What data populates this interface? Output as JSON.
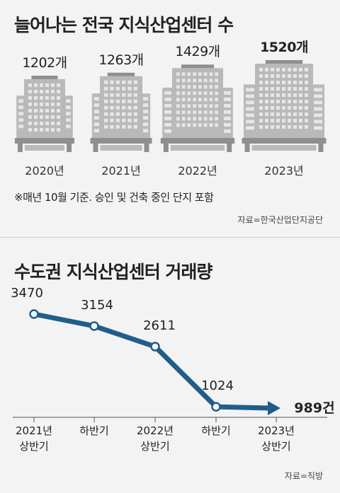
{
  "top_chart": {
    "title": "늘어나는 전국 지식산업센터 수",
    "note": "※매년 10월 기준. 승인 및 건축 중인 단지 포함",
    "source": "자료=한국산업단지공단"
  },
  "bottom_chart": {
    "title": "수도권 지식산업센터 거래량",
    "source": "자료=직방"
  },
  "colors": {
    "building": "#b9b9b9",
    "building_dark": "#8f8f8f",
    "line": "#1f5d8c",
    "background": "#f3f3f3"
  },
  "chart_data": [
    {
      "type": "bar",
      "categories": [
        "2020년",
        "2021년",
        "2022년",
        "2023년"
      ],
      "values": [
        1202,
        1263,
        1429,
        1520
      ],
      "value_labels": [
        "1202개",
        "1263개",
        "1429개",
        "1520개"
      ],
      "title": "늘어나는 전국 지식산업센터 수",
      "highlight_index": 3
    },
    {
      "type": "line",
      "categories": [
        [
          "2021년",
          "상반기"
        ],
        [
          "하반기"
        ],
        [
          "2022년",
          "상반기"
        ],
        [
          "하반기"
        ],
        [
          "2023년",
          "상반기"
        ]
      ],
      "values": [
        3470,
        3154,
        2611,
        1024,
        989
      ],
      "value_labels": [
        "3470",
        "3154",
        "2611",
        "1024",
        "989건"
      ],
      "title": "수도권 지식산업센터 거래량"
    }
  ]
}
